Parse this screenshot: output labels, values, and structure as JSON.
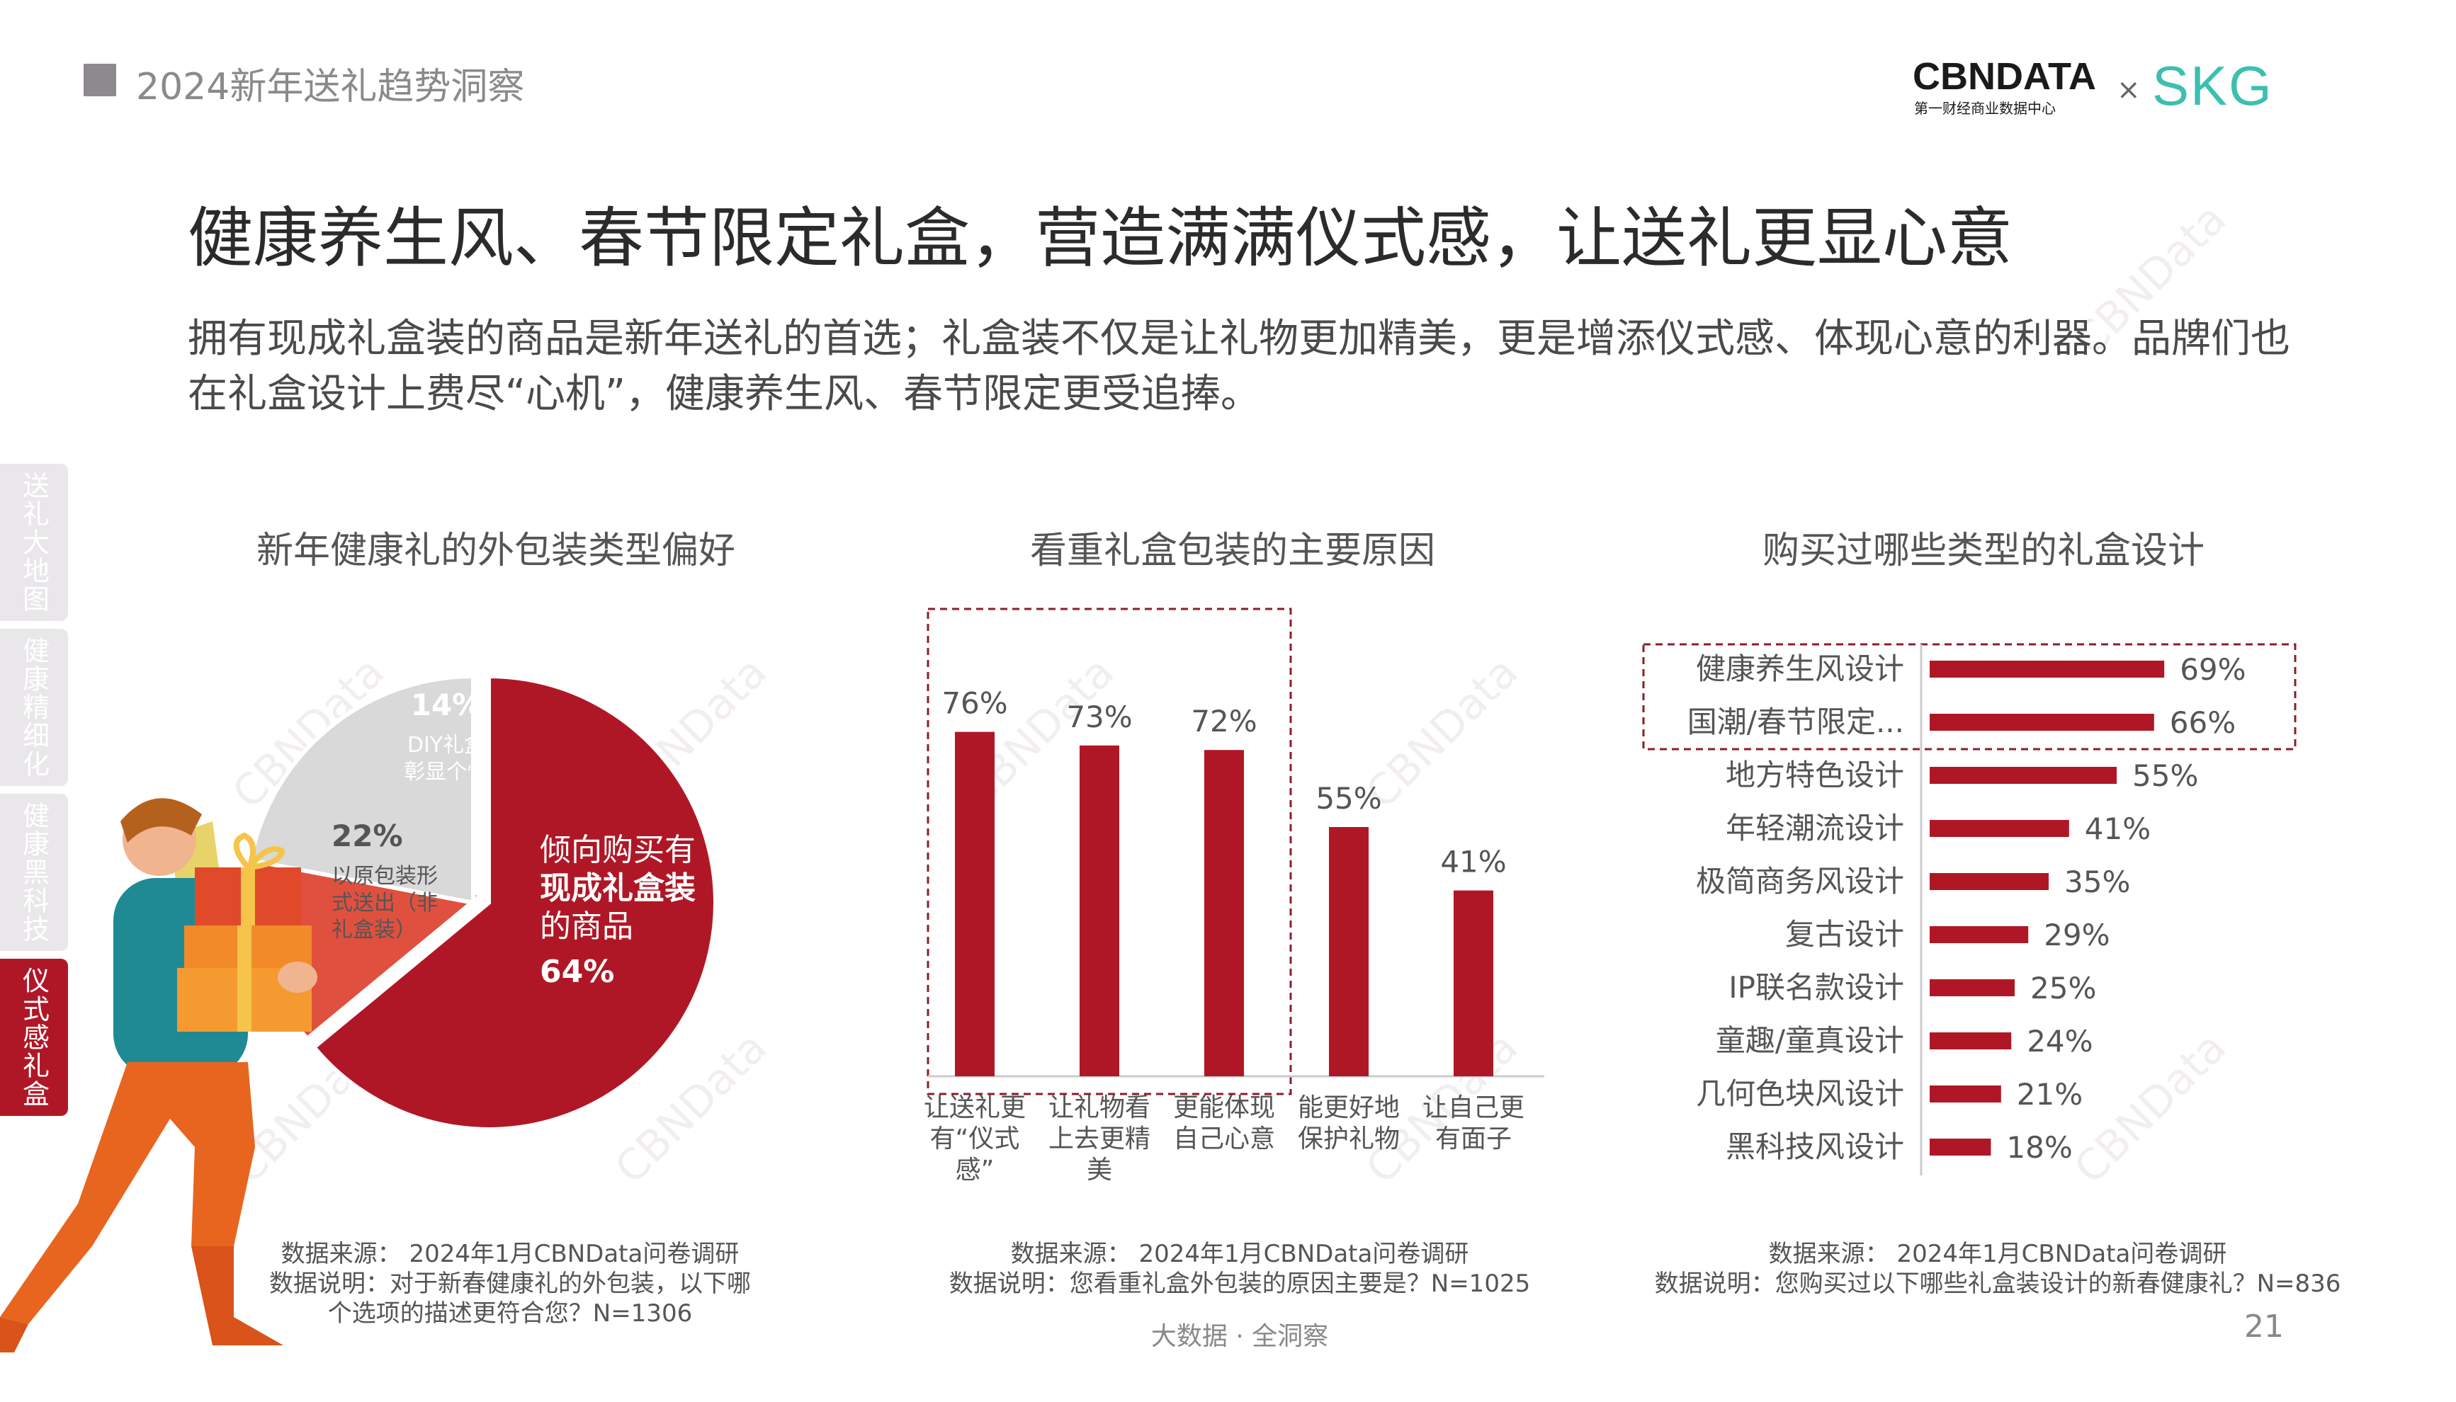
{
  "header": {
    "section_title": "2024新年送礼趋势洞察",
    "logo_cbn": "CBNDATA",
    "logo_cbn_sub": "第一财经商业数据中心",
    "logo_x": "×",
    "logo_skg": "SKG"
  },
  "headline": "健康养生风、春节限定礼盒，营造满满仪式感，让送礼更显心意",
  "lead": "拥有现成礼盒装的商品是新年送礼的首选；礼盒装不仅是让礼物更加精美，更是增添仪式感、体现心意的利器。品牌们也在礼盒设计上费尽“心机”，健康养生风、春节限定更受追捧。",
  "side_tabs": [
    {
      "label": "送礼大地图",
      "active": false
    },
    {
      "label": "健康精细化",
      "active": false
    },
    {
      "label": "健康黑科技",
      "active": false
    },
    {
      "label": "仪式感礼盒",
      "active": true
    }
  ],
  "colors": {
    "brand_red": "#b01726",
    "coral": "#e0503f",
    "light_gray": "#d9d9d9",
    "skg_teal": "#3dbfb0"
  },
  "chart_data": [
    {
      "type": "pie",
      "title": "新年健康礼的外包装类型偏好",
      "slices": [
        {
          "pct": "64%",
          "value": 64,
          "label_lines": [
            "倾向购买有",
            "现成礼盒装",
            "的商品"
          ],
          "color": "#b01726"
        },
        {
          "pct": "14%",
          "value": 14,
          "label_lines": [
            "DIY礼盒",
            "彰显个性"
          ],
          "color": "#e0503f"
        },
        {
          "pct": "22%",
          "value": 22,
          "label_lines": [
            "以原包装形",
            "式送出（非",
            "礼盒装）"
          ],
          "color": "#d9d9d9"
        }
      ],
      "source": "数据来源： 2024年1月CBNData问卷调研",
      "note": "数据说明：对于新春健康礼的外包装，以下哪个选项的描述更符合您？N=1306"
    },
    {
      "type": "bar",
      "title": "看重礼盒包装的主要原因",
      "categories": [
        [
          "让送礼更",
          "有“仪式",
          "感”"
        ],
        [
          "让礼物看",
          "上去更精",
          "美"
        ],
        [
          "更能体现",
          "自己心意"
        ],
        [
          "能更好地",
          "保护礼物"
        ],
        [
          "让自己更",
          "有面子"
        ]
      ],
      "values": [
        76,
        73,
        72,
        55,
        41
      ],
      "value_labels": [
        "76%",
        "73%",
        "72%",
        "55%",
        "41%"
      ],
      "ylim": [
        0,
        100
      ],
      "highlighted": [
        0,
        1,
        2
      ],
      "source": "数据来源： 2024年1月CBNData问卷调研",
      "note": "数据说明：您看重礼盒外包装的原因主要是？N=1025"
    },
    {
      "type": "bar",
      "orientation": "horizontal",
      "title": "购买过哪些类型的礼盒设计",
      "categories": [
        "健康养生风设计",
        "国潮/春节限定...",
        "地方特色设计",
        "年轻潮流设计",
        "极简商务风设计",
        "复古设计",
        "IP联名款设计",
        "童趣/童真设计",
        "几何色块风设计",
        "黑科技风设计"
      ],
      "values": [
        69,
        66,
        55,
        41,
        35,
        29,
        25,
        24,
        21,
        18
      ],
      "value_labels": [
        "69%",
        "66%",
        "55%",
        "41%",
        "35%",
        "29%",
        "25%",
        "24%",
        "21%",
        "18%"
      ],
      "xlim": [
        0,
        100
      ],
      "highlighted": [
        0,
        1
      ],
      "source": "数据来源： 2024年1月CBNData问卷调研",
      "note": "数据说明：您购买过以下哪些礼盒装设计的新春健康礼？N=836"
    }
  ],
  "watermark": "CBNData",
  "footer": "大数据 · 全洞察",
  "page_number": "21"
}
